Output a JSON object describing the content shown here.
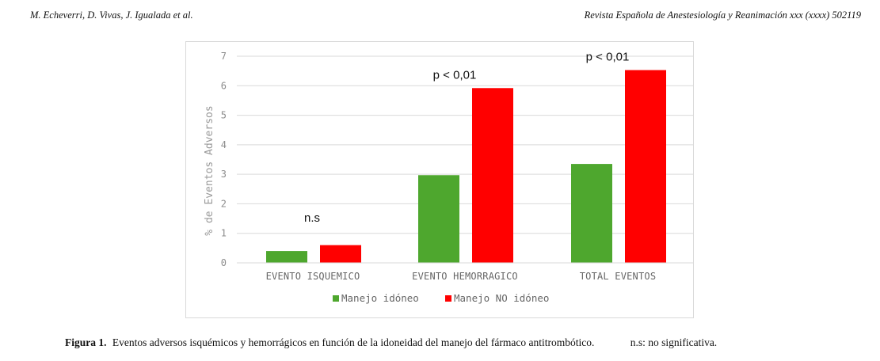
{
  "header": {
    "authors": "M. Echeverri, D. Vivas, J. Igualada et al.",
    "journal": "Revista Española de Anestesiología y Reanimación xxx (xxxx) 502119"
  },
  "caption": {
    "label": "Figura 1.",
    "text": "Eventos adversos isquémicos y hemorrágicos en función de la idoneidad del manejo del fármaco antitrombótico.",
    "note": "n.s: no significativa."
  },
  "chart_data": {
    "type": "bar",
    "categories": [
      "EVENTO ISQUEMICO",
      "EVENTO HEMORRAGICO",
      "TOTAL EVENTOS"
    ],
    "series": [
      {
        "name": "Manejo idóneo",
        "color": "#4ea72e",
        "values": [
          0.4,
          2.97,
          3.35
        ]
      },
      {
        "name": "Manejo NO idóneo",
        "color": "#ff0000",
        "values": [
          0.6,
          5.92,
          6.53
        ]
      }
    ],
    "annotations": [
      "n.s",
      "p < 0,01",
      "p < 0,01"
    ],
    "ylabel": "% de Eventos Adversos",
    "xlabel": "",
    "ylim": [
      0,
      7
    ],
    "yticks": [
      0,
      1,
      2,
      3,
      4,
      5,
      6,
      7
    ],
    "grid": true,
    "legend_position": "bottom"
  }
}
